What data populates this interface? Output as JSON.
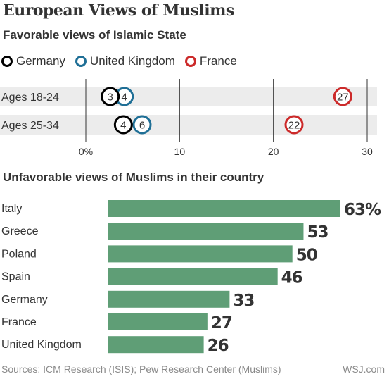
{
  "title": "European Views of Muslims",
  "source": "Sources:  ICM Research (ISIS); Pew Research Center (Muslims)",
  "credit": "WSJ.com",
  "colors": {
    "germany": "#000000",
    "uk": "#1f6f96",
    "france": "#cc2a2a",
    "bar": "#5f9e76",
    "band": "#ececec"
  },
  "legend": [
    {
      "label": "Germany",
      "color": "#000000"
    },
    {
      "label": "United Kingdom",
      "color": "#1f6f96"
    },
    {
      "label": "France",
      "color": "#cc2a2a"
    }
  ],
  "chart_data": [
    {
      "type": "scatter",
      "title": "Favorable views of Islamic State",
      "categories": [
        "Ages 18-24",
        "Ages 25-34"
      ],
      "series": [
        {
          "name": "Germany",
          "values": [
            3,
            4
          ],
          "color": "#000000"
        },
        {
          "name": "United Kingdom",
          "values": [
            4,
            6
          ],
          "color": "#1f6f96"
        },
        {
          "name": "France",
          "values": [
            27,
            22
          ],
          "color": "#cc2a2a"
        }
      ],
      "xlim": [
        0,
        30
      ],
      "x_ticks": [
        0,
        10,
        20,
        30
      ],
      "x_tick_labels": [
        "0%",
        "10",
        "20",
        "30"
      ],
      "plotted_x": {
        "Germany": [
          2.6,
          4.0
        ],
        "United Kingdom": [
          4.1,
          6.0
        ],
        "France": [
          27.4,
          22.2
        ]
      }
    },
    {
      "type": "bar",
      "title": "Unfavorable views of Muslims in their country",
      "categories": [
        "Italy",
        "Greece",
        "Poland",
        "Spain",
        "Germany",
        "France",
        "United Kingdom"
      ],
      "values": [
        63,
        53,
        50,
        46,
        33,
        27,
        26
      ],
      "value_labels": [
        "63%",
        "53",
        "50",
        "46",
        "33",
        "27",
        "26"
      ],
      "orientation": "horizontal"
    }
  ]
}
